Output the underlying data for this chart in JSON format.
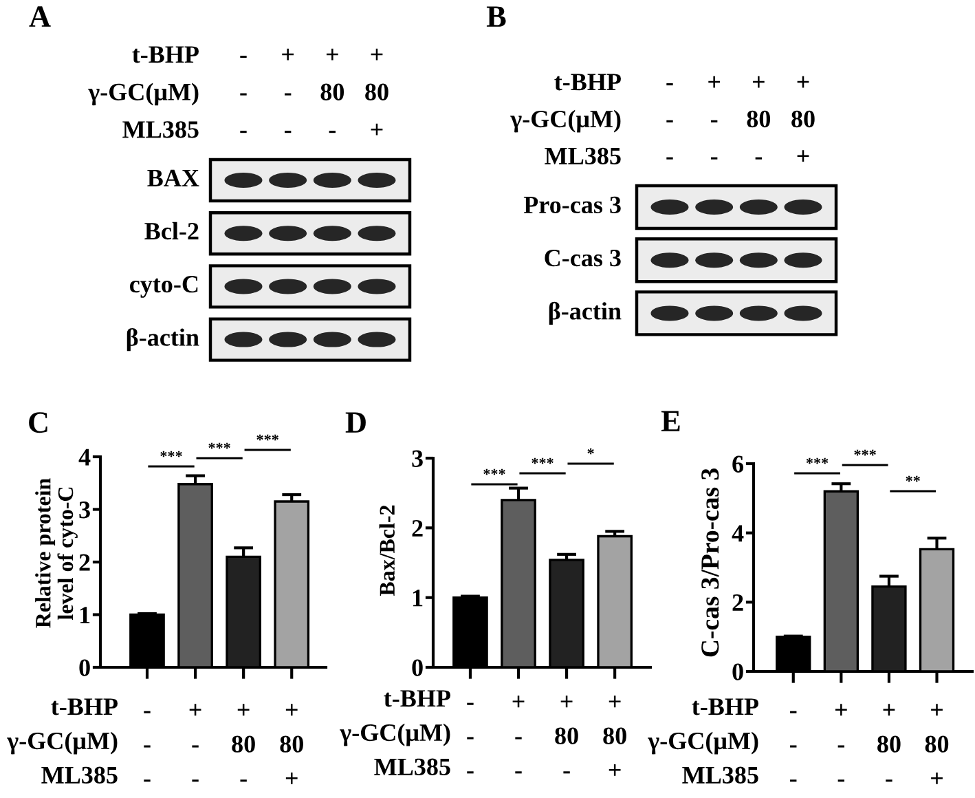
{
  "chart_data": [
    {
      "type": "other",
      "title": "A",
      "categories": [
        "-\n-\n-",
        "+\n-\n-",
        "+\n80\n-",
        "+\n80\n+"
      ],
      "xlabel": "t-BHP\nγ-GC(μM)\nML385",
      "annotations": [
        "BAX",
        "Bcl-2",
        "cyto-C",
        "β-actin"
      ]
    },
    {
      "type": "other",
      "title": "B",
      "categories": [
        "-\n-\n-",
        "+\n-\n-",
        "+\n80\n-",
        "+\n80\n+"
      ],
      "xlabel": "t-BHP\nγ-GC(μM)\nML385",
      "annotations": [
        "Pro-cas 3",
        "C-cas 3",
        "β-actin"
      ]
    },
    {
      "type": "bar",
      "title": "C",
      "ylabel": "Relative protein\nlevel of cyto-C",
      "xlabel": "t-BHP\nγ-GC(μM)\nML385",
      "categories": [
        "-\n-\n-",
        "+\n-\n-",
        "+\n80\n-",
        "+\n80\n+"
      ],
      "values": [
        1.0,
        3.48,
        2.1,
        3.15
      ],
      "errors": [
        0.02,
        0.16,
        0.17,
        0.13
      ],
      "colors": [
        "#000000",
        "#5e5e5e",
        "#222222",
        "#a3a3a3"
      ],
      "ylim": [
        0,
        4
      ],
      "yticks": [
        0,
        1,
        2,
        3,
        4
      ],
      "annotations": [
        "***",
        "***",
        "***"
      ]
    },
    {
      "type": "bar",
      "title": "D",
      "ylabel": "Bax/Bcl-2",
      "xlabel": "t-BHP\nγ-GC(μM)\nML385",
      "categories": [
        "-\n-\n-",
        "+\n-\n-",
        "+\n80\n-",
        "+\n80\n+"
      ],
      "values": [
        1.0,
        2.4,
        1.54,
        1.88
      ],
      "errors": [
        0.02,
        0.17,
        0.08,
        0.07
      ],
      "colors": [
        "#000000",
        "#5e5e5e",
        "#222222",
        "#a3a3a3"
      ],
      "ylim": [
        0,
        3
      ],
      "yticks": [
        0,
        1,
        2,
        3
      ],
      "annotations": [
        "***",
        "***",
        "*"
      ]
    },
    {
      "type": "bar",
      "title": "E",
      "ylabel": "C-cas 3/Pro-cas 3",
      "xlabel": "t-BHP\nγ-GC(μM)\nML385",
      "categories": [
        "-\n-\n-",
        "+\n-\n-",
        "+\n80\n-",
        "+\n80\n+"
      ],
      "values": [
        1.0,
        5.2,
        2.45,
        3.53
      ],
      "errors": [
        0.02,
        0.22,
        0.3,
        0.32
      ],
      "colors": [
        "#000000",
        "#5e5e5e",
        "#222222",
        "#a3a3a3"
      ],
      "ylim": [
        0,
        6
      ],
      "yticks": [
        0,
        2,
        4,
        6
      ],
      "annotations": [
        "***",
        "***",
        "**"
      ]
    }
  ]
}
